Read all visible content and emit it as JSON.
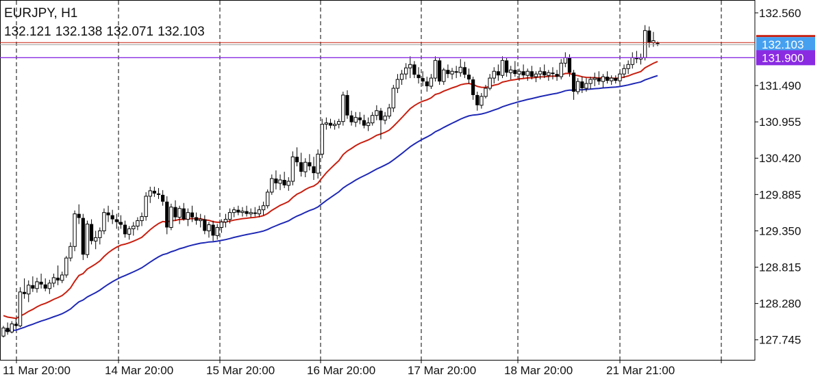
{
  "header": {
    "symbol_timeframe": "EURJPY, H1",
    "ohlc": [
      "132.121",
      "132.138",
      "132.071",
      "132.103"
    ]
  },
  "colors": {
    "background": "#ffffff",
    "grid": "#000000",
    "candle": "#000000",
    "ma_fast": "#c81e0f",
    "ma_slow": "#1e28b4",
    "level_line": "#8a2be2",
    "bid_line": "#9a9a9a",
    "bid_label_bg": "#46a0f0",
    "level_label_bg": "#8a2be2"
  },
  "chart_data": {
    "type": "candlestick",
    "symbol": "EURJPY",
    "timeframe": "H1",
    "ylim": [
      127.45,
      132.75
    ],
    "y_ticks": [
      "132.560",
      "131.490",
      "130.955",
      "130.420",
      "129.885",
      "129.350",
      "128.815",
      "128.280",
      "127.745"
    ],
    "x_ticks": [
      "11 Mar 20:00",
      "14 Mar 20:00",
      "15 Mar 20:00",
      "16 Mar 20:00",
      "17 Mar 20:00",
      "18 Mar 20:00",
      "21 Mar 21:00"
    ],
    "price_labels": [
      {
        "name": "bid",
        "value": "132.103"
      },
      {
        "name": "level",
        "value": "131.900"
      }
    ],
    "horizontal_lines": [
      {
        "name": "bid",
        "value": 132.103
      },
      {
        "name": "level",
        "value": 131.9
      }
    ],
    "candles": [
      [
        127.8,
        127.95,
        127.78,
        127.92
      ],
      [
        127.92,
        128.0,
        127.82,
        127.86
      ],
      [
        127.86,
        128.02,
        127.84,
        127.98
      ],
      [
        127.98,
        128.06,
        127.9,
        127.95
      ],
      [
        127.95,
        128.52,
        127.93,
        128.45
      ],
      [
        128.45,
        128.65,
        128.35,
        128.42
      ],
      [
        128.42,
        128.62,
        128.3,
        128.55
      ],
      [
        128.55,
        128.68,
        128.45,
        128.5
      ],
      [
        128.5,
        128.66,
        128.44,
        128.6
      ],
      [
        128.6,
        128.72,
        128.5,
        128.56
      ],
      [
        128.56,
        128.65,
        128.46,
        128.5
      ],
      [
        128.5,
        128.63,
        128.42,
        128.58
      ],
      [
        128.58,
        128.72,
        128.52,
        128.66
      ],
      [
        128.66,
        128.84,
        128.55,
        128.62
      ],
      [
        128.62,
        128.75,
        128.58,
        128.7
      ],
      [
        128.7,
        128.98,
        128.66,
        128.95
      ],
      [
        128.95,
        129.18,
        128.9,
        129.12
      ],
      [
        129.12,
        129.65,
        129.05,
        129.6
      ],
      [
        129.6,
        129.74,
        129.45,
        129.54
      ],
      [
        129.54,
        129.6,
        128.92,
        129.0
      ],
      [
        129.0,
        129.5,
        128.95,
        129.45
      ],
      [
        129.45,
        129.52,
        129.15,
        129.2
      ],
      [
        129.2,
        129.35,
        129.08,
        129.25
      ],
      [
        129.25,
        129.4,
        129.15,
        129.35
      ],
      [
        129.35,
        129.68,
        129.3,
        129.62
      ],
      [
        129.62,
        129.72,
        129.48,
        129.58
      ],
      [
        129.58,
        129.66,
        129.45,
        129.52
      ],
      [
        129.52,
        129.6,
        129.38,
        129.48
      ],
      [
        129.48,
        129.58,
        129.38,
        129.44
      ],
      [
        129.44,
        129.5,
        129.25,
        129.3
      ],
      [
        129.3,
        129.42,
        129.22,
        129.38
      ],
      [
        129.38,
        129.48,
        129.28,
        129.42
      ],
      [
        129.42,
        129.55,
        129.36,
        129.5
      ],
      [
        129.5,
        129.62,
        129.42,
        129.56
      ],
      [
        129.56,
        129.92,
        129.5,
        129.86
      ],
      [
        129.86,
        130.0,
        129.76,
        129.94
      ],
      [
        129.94,
        130.0,
        129.85,
        129.9
      ],
      [
        129.9,
        129.98,
        129.82,
        129.88
      ],
      [
        129.88,
        129.95,
        129.72,
        129.78
      ],
      [
        129.78,
        129.86,
        129.3,
        129.4
      ],
      [
        129.4,
        129.75,
        129.36,
        129.7
      ],
      [
        129.7,
        129.8,
        129.5,
        129.55
      ],
      [
        129.55,
        129.72,
        129.45,
        129.68
      ],
      [
        129.68,
        129.76,
        129.5,
        129.52
      ],
      [
        129.52,
        129.68,
        129.42,
        129.62
      ],
      [
        129.62,
        129.72,
        129.48,
        129.55
      ],
      [
        129.55,
        129.62,
        129.44,
        129.5
      ],
      [
        129.5,
        129.6,
        129.4,
        129.52
      ],
      [
        129.52,
        129.58,
        129.3,
        129.35
      ],
      [
        129.35,
        129.48,
        129.25,
        129.44
      ],
      [
        129.44,
        129.5,
        129.2,
        129.28
      ],
      [
        129.28,
        129.45,
        129.22,
        129.4
      ],
      [
        129.4,
        129.52,
        129.32,
        129.48
      ],
      [
        129.48,
        129.6,
        129.4,
        129.52
      ],
      [
        129.52,
        129.68,
        129.46,
        129.62
      ],
      [
        129.62,
        129.7,
        129.55,
        129.66
      ],
      [
        129.66,
        129.72,
        129.58,
        129.62
      ],
      [
        129.62,
        129.7,
        129.56,
        129.64
      ],
      [
        129.64,
        129.72,
        129.56,
        129.6
      ],
      [
        129.6,
        129.68,
        129.55,
        129.62
      ],
      [
        129.62,
        129.7,
        129.56,
        129.6
      ],
      [
        129.6,
        129.72,
        129.55,
        129.66
      ],
      [
        129.66,
        129.78,
        129.58,
        129.72
      ],
      [
        129.72,
        129.96,
        129.68,
        129.92
      ],
      [
        129.92,
        130.18,
        129.88,
        130.12
      ],
      [
        130.12,
        130.24,
        129.96,
        130.05
      ],
      [
        130.05,
        130.18,
        129.95,
        130.1
      ],
      [
        130.1,
        130.22,
        129.98,
        130.02
      ],
      [
        130.02,
        130.14,
        129.94,
        130.08
      ],
      [
        130.08,
        130.52,
        130.02,
        130.44
      ],
      [
        130.44,
        130.58,
        130.3,
        130.36
      ],
      [
        130.36,
        130.5,
        130.15,
        130.22
      ],
      [
        130.22,
        130.42,
        130.14,
        130.36
      ],
      [
        130.36,
        130.48,
        130.24,
        130.3
      ],
      [
        130.3,
        130.44,
        130.1,
        130.2
      ],
      [
        130.2,
        130.55,
        130.12,
        130.48
      ],
      [
        130.48,
        131.0,
        130.42,
        130.92
      ],
      [
        130.92,
        131.02,
        130.84,
        130.94
      ],
      [
        130.94,
        131.0,
        130.86,
        130.9
      ],
      [
        130.9,
        130.98,
        130.84,
        130.92
      ],
      [
        130.92,
        131.0,
        130.86,
        130.96
      ],
      [
        130.96,
        131.4,
        130.9,
        131.35
      ],
      [
        131.35,
        131.42,
        131.0,
        131.05
      ],
      [
        131.05,
        131.12,
        130.9,
        130.95
      ],
      [
        130.95,
        131.1,
        130.88,
        131.02
      ],
      [
        131.02,
        131.1,
        130.92,
        130.98
      ],
      [
        130.98,
        131.06,
        130.86,
        130.9
      ],
      [
        130.9,
        131.02,
        130.82,
        130.94
      ],
      [
        130.94,
        131.1,
        130.9,
        131.05
      ],
      [
        131.05,
        131.2,
        130.98,
        131.12
      ],
      [
        131.12,
        131.16,
        130.7,
        130.98
      ],
      [
        130.98,
        131.1,
        130.92,
        131.04
      ],
      [
        131.04,
        131.22,
        131.0,
        131.16
      ],
      [
        131.16,
        131.5,
        131.1,
        131.45
      ],
      [
        131.45,
        131.66,
        131.38,
        131.58
      ],
      [
        131.58,
        131.72,
        131.5,
        131.66
      ],
      [
        131.66,
        131.82,
        131.58,
        131.75
      ],
      [
        131.75,
        131.92,
        131.6,
        131.8
      ],
      [
        131.8,
        131.85,
        131.6,
        131.65
      ],
      [
        131.65,
        131.76,
        131.52,
        131.6
      ],
      [
        131.6,
        131.7,
        131.48,
        131.55
      ],
      [
        131.55,
        131.62,
        131.4,
        131.48
      ],
      [
        131.48,
        131.66,
        131.44,
        131.6
      ],
      [
        131.6,
        131.92,
        131.55,
        131.86
      ],
      [
        131.86,
        131.9,
        131.5,
        131.55
      ],
      [
        131.55,
        131.75,
        131.5,
        131.72
      ],
      [
        131.72,
        131.8,
        131.6,
        131.66
      ],
      [
        131.66,
        131.75,
        131.58,
        131.7
      ],
      [
        131.7,
        131.78,
        131.6,
        131.68
      ],
      [
        131.68,
        131.88,
        131.62,
        131.76
      ],
      [
        131.76,
        131.84,
        131.6,
        131.65
      ],
      [
        131.65,
        131.74,
        131.52,
        131.58
      ],
      [
        131.58,
        131.62,
        131.28,
        131.35
      ],
      [
        131.35,
        131.4,
        131.12,
        131.2
      ],
      [
        131.2,
        131.38,
        131.15,
        131.33
      ],
      [
        131.33,
        131.5,
        131.3,
        131.45
      ],
      [
        131.45,
        131.66,
        131.42,
        131.6
      ],
      [
        131.6,
        131.76,
        131.52,
        131.7
      ],
      [
        131.7,
        131.8,
        131.56,
        131.64
      ],
      [
        131.64,
        131.92,
        131.6,
        131.86
      ],
      [
        131.86,
        131.9,
        131.62,
        131.68
      ],
      [
        131.68,
        131.78,
        131.58,
        131.72
      ],
      [
        131.72,
        131.85,
        131.62,
        131.66
      ],
      [
        131.66,
        131.74,
        131.56,
        131.7
      ],
      [
        131.7,
        131.8,
        131.6,
        131.64
      ],
      [
        131.64,
        131.74,
        131.56,
        131.7
      ],
      [
        131.7,
        131.78,
        131.58,
        131.62
      ],
      [
        131.62,
        131.7,
        131.54,
        131.66
      ],
      [
        131.66,
        131.76,
        131.58,
        131.7
      ],
      [
        131.7,
        131.8,
        131.6,
        131.64
      ],
      [
        131.64,
        131.72,
        131.56,
        131.68
      ],
      [
        131.68,
        131.76,
        131.58,
        131.66
      ],
      [
        131.66,
        131.72,
        131.56,
        131.62
      ],
      [
        131.62,
        131.88,
        131.58,
        131.82
      ],
      [
        131.82,
        131.98,
        131.76,
        131.9
      ],
      [
        131.9,
        131.95,
        131.62,
        131.68
      ],
      [
        131.68,
        131.72,
        131.28,
        131.4
      ],
      [
        131.4,
        131.6,
        131.36,
        131.55
      ],
      [
        131.55,
        131.62,
        131.38,
        131.45
      ],
      [
        131.45,
        131.6,
        131.4,
        131.52
      ],
      [
        131.52,
        131.62,
        131.44,
        131.58
      ],
      [
        131.58,
        131.68,
        131.48,
        131.6
      ],
      [
        131.6,
        131.7,
        131.5,
        131.55
      ],
      [
        131.55,
        131.66,
        131.46,
        131.62
      ],
      [
        131.62,
        131.7,
        131.52,
        131.56
      ],
      [
        131.56,
        131.64,
        131.5,
        131.6
      ],
      [
        131.6,
        131.64,
        131.52,
        131.56
      ],
      [
        131.56,
        131.7,
        131.52,
        131.66
      ],
      [
        131.66,
        131.8,
        131.6,
        131.74
      ],
      [
        131.74,
        131.86,
        131.66,
        131.8
      ],
      [
        131.8,
        131.98,
        131.74,
        131.9
      ],
      [
        131.9,
        132.0,
        131.82,
        131.88
      ],
      [
        131.88,
        131.96,
        131.8,
        131.9
      ],
      [
        131.9,
        132.38,
        131.86,
        132.3
      ],
      [
        132.3,
        132.36,
        132.05,
        132.12
      ],
      [
        132.12,
        132.28,
        132.06,
        132.15
      ],
      [
        132.121,
        132.138,
        132.071,
        132.103
      ]
    ]
  }
}
